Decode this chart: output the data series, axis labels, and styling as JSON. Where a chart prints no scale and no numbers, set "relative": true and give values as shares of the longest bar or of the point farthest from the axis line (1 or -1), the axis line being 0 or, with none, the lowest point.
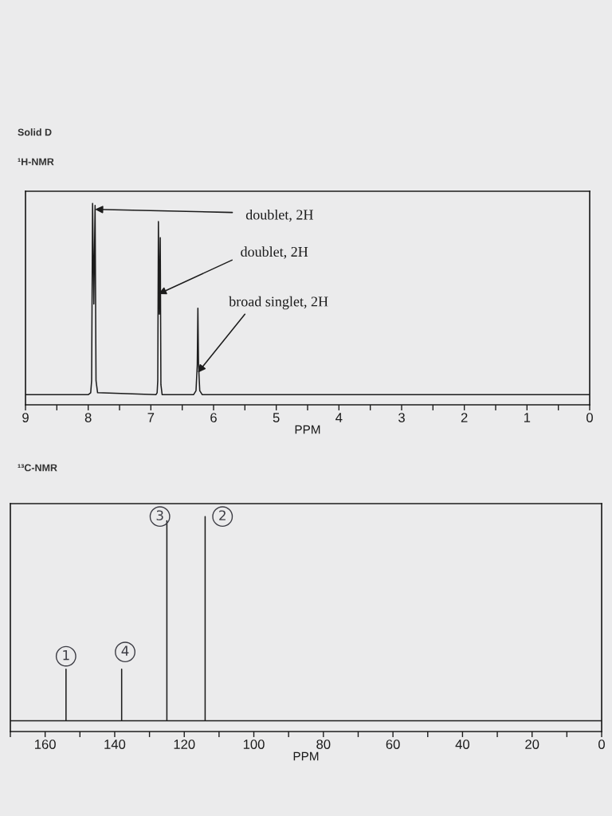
{
  "chart_data": [
    {
      "type": "line",
      "title": "Solid D",
      "subtitle": "¹H-NMR",
      "xlabel": "PPM",
      "relative": true,
      "tick_labels": "x",
      "series": [
        {
          "color": "#1c1c1c",
          "x": [
            9,
            8.0,
            7.96,
            7.945,
            7.93,
            7.91,
            7.89,
            7.875,
            7.85,
            6.92,
            6.9,
            6.89,
            6.88,
            6.865,
            6.85,
            6.84,
            6.82,
            6.32,
            6.28,
            6.26,
            6.25,
            6.24,
            6.22,
            6.18,
            0
          ],
          "values": [
            0.05,
            0.05,
            0.06,
            0.12,
            1.0,
            0.5,
            0.99,
            0.12,
            0.06,
            0.05,
            0.06,
            0.12,
            0.91,
            0.45,
            0.83,
            0.1,
            0.05,
            0.05,
            0.07,
            0.2,
            0.48,
            0.2,
            0.07,
            0.05,
            0.05
          ]
        }
      ],
      "xlim": [
        9,
        0
      ],
      "xticks": [
        9,
        {
          "value": 8.5,
          "label": null
        },
        8,
        {
          "value": 7.5,
          "label": null
        },
        7,
        {
          "value": 6.5,
          "label": null
        },
        6,
        {
          "value": 5.5,
          "label": null
        },
        5,
        {
          "value": 4.5,
          "label": null
        },
        4,
        {
          "value": 3.5,
          "label": null
        },
        3,
        {
          "value": 2.5,
          "label": null
        },
        2,
        {
          "value": 1.5,
          "label": null
        },
        1,
        {
          "value": 0.5,
          "label": null
        },
        0
      ],
      "annotations": [
        {
          "text": "doublet, 2H",
          "x": 7.89,
          "y": 0.97
        },
        {
          "text": "doublet, 2H",
          "x": 6.88,
          "y": 0.55
        },
        {
          "text": "broad singlet, 2H",
          "x": 6.25,
          "y": 0.16
        }
      ]
    },
    {
      "type": "line",
      "title": "¹³C-NMR",
      "xlabel": "PPM",
      "relative": true,
      "tick_labels": "x",
      "series": [
        {
          "color": "#1c1c1c",
          "x": [
            170,
            154,
            154,
            154,
            138,
            138,
            138,
            125,
            125,
            125,
            114,
            114,
            114,
            0
          ],
          "values": [
            0.05,
            0.05,
            0.29,
            0.05,
            0.05,
            0.29,
            0.05,
            0.05,
            0.98,
            0.05,
            0.05,
            1.0,
            0.05,
            0.05
          ]
        }
      ],
      "xlim": [
        170,
        0
      ],
      "xticks": [
        {
          "value": 170,
          "label": null
        },
        160,
        {
          "value": 150,
          "label": null
        },
        140,
        {
          "value": 130,
          "label": null
        },
        120,
        {
          "value": 110,
          "label": null
        },
        100,
        {
          "value": 90,
          "label": null
        },
        80,
        {
          "value": 70,
          "label": null
        },
        60,
        {
          "value": 50,
          "label": null
        },
        40,
        {
          "value": 30,
          "label": null
        },
        20,
        {
          "value": 10,
          "label": null
        },
        0
      ],
      "annotations": [
        {
          "text": "1",
          "x": 154,
          "y": 0.35
        },
        {
          "text": "4",
          "x": 137,
          "y": 0.37
        },
        {
          "text": "3",
          "x": 127,
          "y": 1.0
        },
        {
          "text": "2",
          "x": 109,
          "y": 1.0
        }
      ]
    }
  ]
}
